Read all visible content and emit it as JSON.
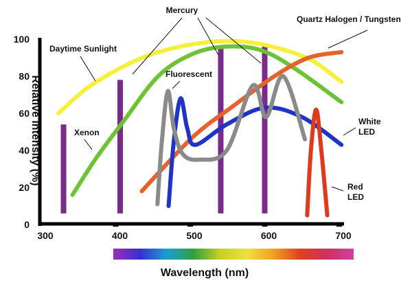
{
  "chart_data": {
    "type": "line",
    "title": "",
    "xlabel": "Wavelength (nm)",
    "ylabel": "Relative Intensity (%)",
    "xlim": [
      300,
      700
    ],
    "ylim": [
      0,
      100
    ],
    "xticks": [
      300,
      400,
      500,
      600,
      700
    ],
    "yticks": [
      0,
      20,
      40,
      60,
      80,
      100
    ],
    "grid": false,
    "legend": "none",
    "series": [
      {
        "name": "Daytime Sunlight",
        "color": "#f5f03c",
        "x": [
          323,
          374,
          457,
          558,
          650,
          703
        ],
        "y": [
          60,
          77,
          93,
          99,
          91,
          77
        ]
      },
      {
        "name": "Xenon",
        "color": "#6cc333",
        "x": [
          342,
          374,
          411,
          457,
          503,
          549,
          595,
          641,
          703
        ],
        "y": [
          16,
          36,
          56,
          80,
          92,
          96,
          94,
          84,
          66
        ]
      },
      {
        "name": "Quartz Halogen / Tungsten",
        "color": "#e8612a",
        "x": [
          435,
          503,
          558,
          613,
          659,
          703
        ],
        "y": [
          18,
          47,
          64,
          80,
          90,
          93
        ]
      },
      {
        "name": "White LED",
        "color": "#1f33c4",
        "x": [
          471,
          478,
          487,
          496,
          507,
          549,
          600,
          650,
          703
        ],
        "y": [
          10,
          45,
          68,
          52,
          43,
          54,
          63,
          58,
          43
        ]
      },
      {
        "name": "Fluorescent",
        "color": "#8a8a8a",
        "x": [
          456,
          462,
          470,
          478,
          490,
          512,
          549,
          584,
          602,
          625,
          654
        ],
        "y": [
          11,
          45,
          72,
          52,
          38,
          35,
          40,
          75,
          58,
          80,
          46
        ]
      },
      {
        "name": "Red LED",
        "color": "#de3a1e",
        "x": [
          657,
          662,
          669,
          676,
          684
        ],
        "y": [
          5,
          40,
          62,
          40,
          5
        ]
      }
    ],
    "spikes": {
      "name": "Mercury",
      "color": "#7b2a8a",
      "x": [
        330,
        406,
        541,
        600
      ],
      "y": [
        54,
        78,
        96,
        97
      ],
      "base": 6
    },
    "annotations": [
      "Mercury",
      "Quartz Halogen / Tungsten",
      "Daytime Sunlight",
      "Fluorescent",
      "Xenon",
      "White LED",
      "Red LED"
    ],
    "colorbar": [
      "#9a2fb8",
      "#3a2fd0",
      "#1a9fd0",
      "#2fa040",
      "#c8d020",
      "#f0e040",
      "#f0a020",
      "#e04020",
      "#d03060",
      "#d040a0"
    ]
  }
}
